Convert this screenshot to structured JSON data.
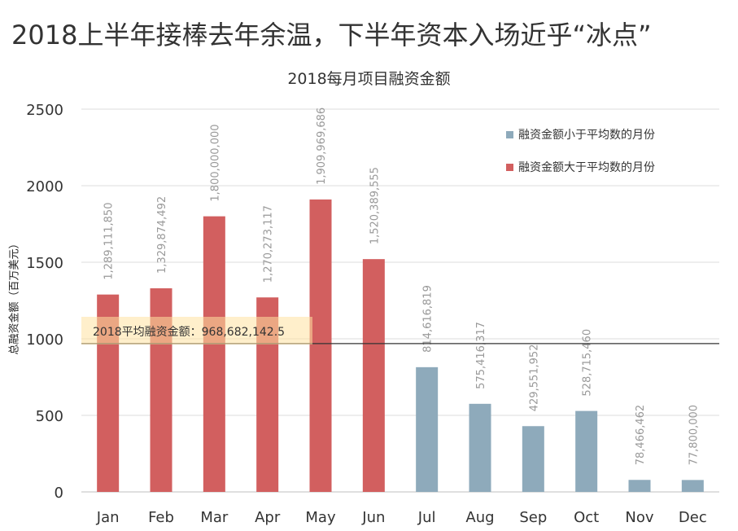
{
  "headline": "2018上半年接棒去年余温，下半年资本入场近乎“冰点”",
  "chart_data": {
    "type": "bar",
    "title": "2018每月项目融资金额",
    "ylabel": "总融资金额（百万美元）",
    "xlabel": "",
    "ylim": [
      0,
      2500
    ],
    "yticks": [
      0,
      500,
      1000,
      1500,
      2000,
      2500
    ],
    "grid": true,
    "legend_position": "top-right",
    "categories": [
      "Jan",
      "Feb",
      "Mar",
      "Apr",
      "May",
      "Jun",
      "Jul",
      "Aug",
      "Sep",
      "Oct",
      "Nov",
      "Dec"
    ],
    "values": [
      1289.11185,
      1329.874492,
      1800.0,
      1270.273117,
      1909.969686,
      1520.389555,
      814.616819,
      575.416317,
      429.551952,
      528.71546,
      78.466462,
      77.8
    ],
    "value_labels": [
      "1,289,111,850",
      "1,329,874,492",
      "1,800,000,000",
      "1,270,273,117",
      "1,909,969,686",
      "1,520,389,555",
      "814,616,819",
      "575,416,317",
      "429,551,952",
      "528,715,460",
      "78,466,462",
      "77,800,000"
    ],
    "group": [
      "above",
      "above",
      "above",
      "above",
      "above",
      "above",
      "below",
      "below",
      "below",
      "below",
      "below",
      "below"
    ],
    "legend": [
      {
        "name": "融资金额小于平均数的月份",
        "color": "#8eaabb",
        "key": "below"
      },
      {
        "name": "融资金额大于平均数的月份",
        "color": "#d25f5f",
        "key": "above"
      }
    ],
    "average": {
      "value": 968.6821425,
      "label": "2018平均融资金额：968,682,142.5"
    }
  }
}
